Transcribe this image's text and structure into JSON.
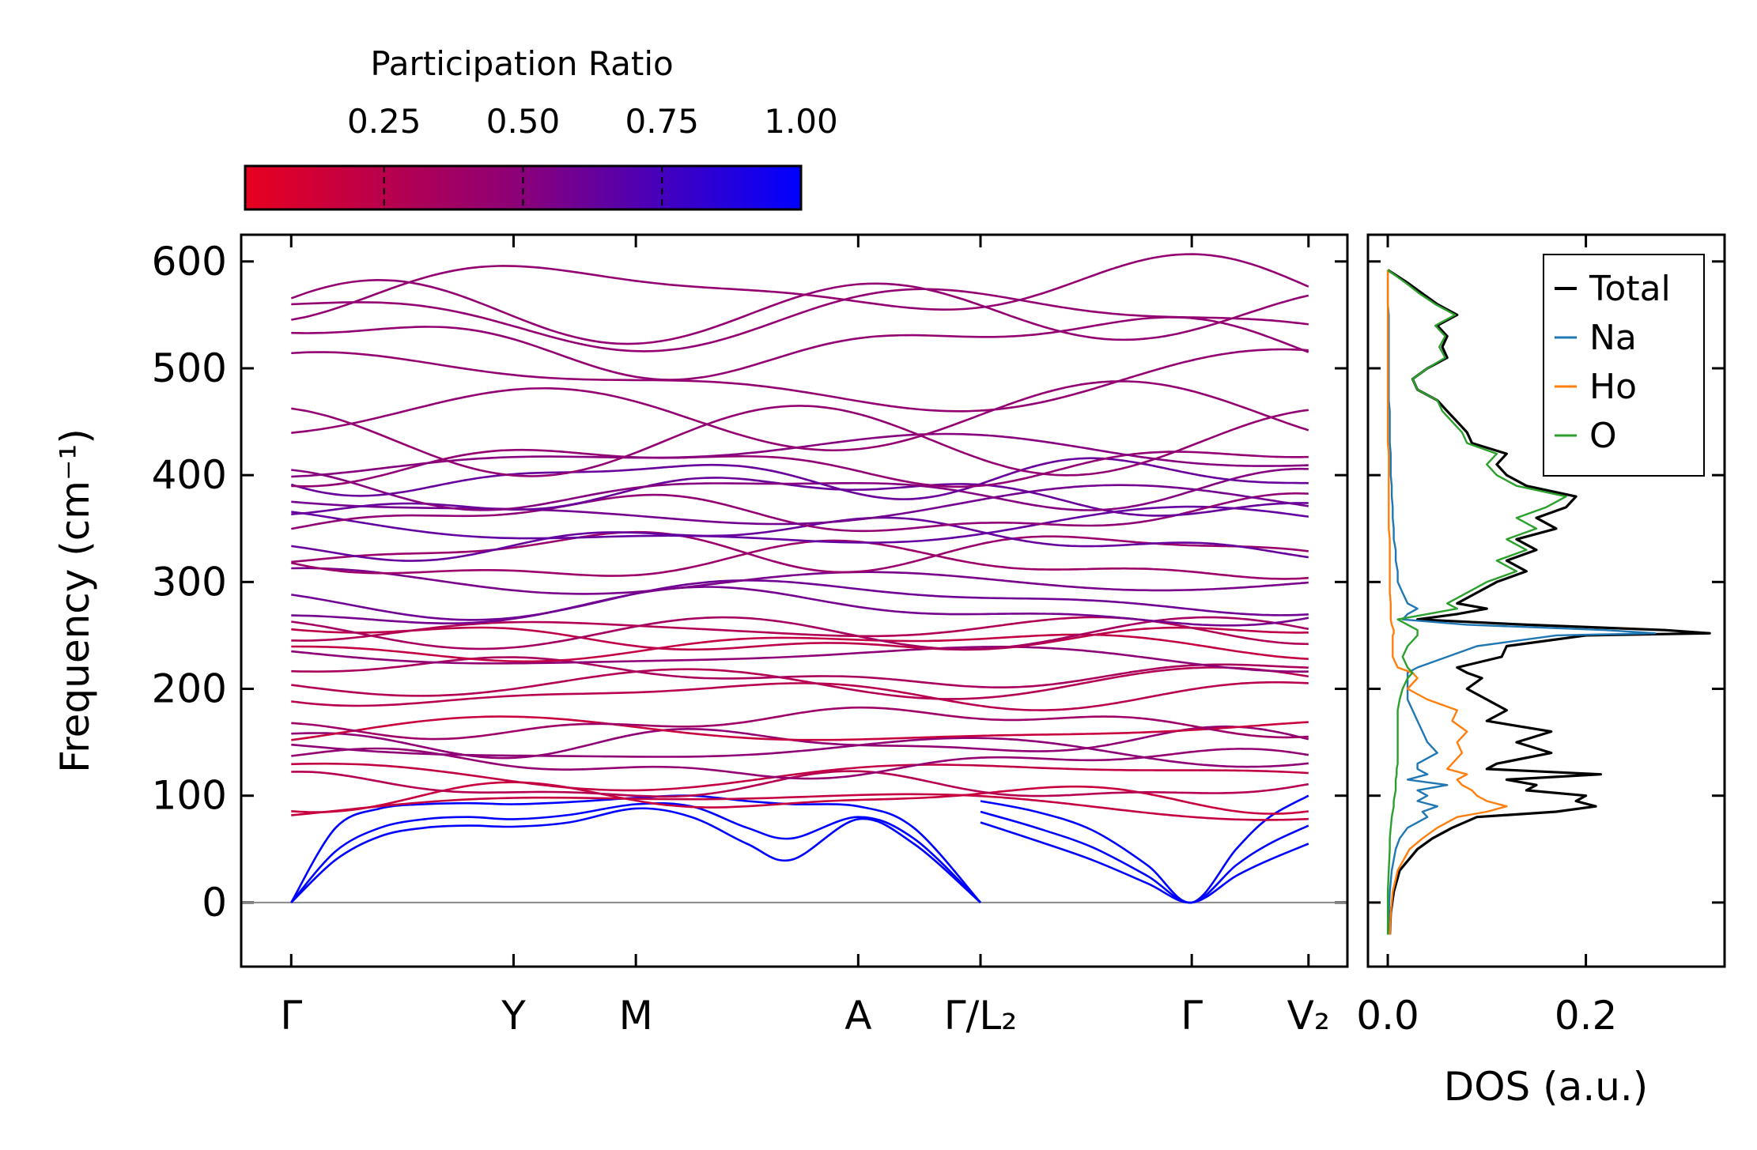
{
  "colorbar": {
    "title": "Participation Ratio",
    "range": [
      0.0,
      1.0
    ],
    "ticks": [
      0.25,
      0.5,
      0.75,
      1.0
    ],
    "tick_labels": [
      "0.25",
      "0.50",
      "0.75",
      "1.00"
    ],
    "color_low": "#e8001f",
    "color_mid": "#8a007a",
    "color_high": "#0000ff"
  },
  "chart_data": [
    {
      "type": "line",
      "name": "phonon-band-structure",
      "ylabel": "Frequency (cm⁻¹)",
      "ylim": [
        -60,
        625
      ],
      "yticks": [
        0,
        100,
        200,
        300,
        400,
        500,
        600
      ],
      "ytick_labels": [
        "0",
        "100",
        "200",
        "300",
        "400",
        "500",
        "600"
      ],
      "kpath_positions": [
        0,
        2.0,
        3.1,
        5.1,
        6.2,
        8.1,
        9.15
      ],
      "kpath_xlim": [
        -0.45,
        9.5
      ],
      "kpath_labels": [
        "Γ",
        "Y",
        "M",
        "A",
        "Γ/L₂",
        "Γ",
        "V₂"
      ],
      "kpath_break_at": 6.2,
      "zero_line": 0,
      "acoustic_branches": {
        "color_pr": 1.0,
        "seg1_gamma_y_m_a_gamma": [
          [
            0,
            0.4,
            0.8,
            1.2,
            1.6,
            2.0,
            2.5,
            3.1,
            3.6,
            4.1,
            4.5,
            5.1,
            5.6,
            6.2
          ],
          [
            [
              0,
              40,
              62,
              70,
              72,
              71,
              75,
              88,
              80,
              55,
              40,
              78,
              55,
              0
            ],
            [
              0,
              48,
              70,
              78,
              80,
              78,
              82,
              92,
              90,
              70,
              60,
              80,
              60,
              0
            ],
            [
              0,
              70,
              88,
              92,
              93,
              92,
              94,
              98,
              100,
              95,
              92,
              90,
              70,
              0
            ]
          ]
        ],
        "seg2_L2_gamma_V2": [
          [
            6.2,
            6.7,
            7.2,
            7.7,
            8.1,
            8.5,
            8.8,
            9.15
          ],
          [
            [
              75,
              58,
              40,
              18,
              0,
              25,
              40,
              55
            ],
            [
              85,
              70,
              52,
              25,
              0,
              35,
              55,
              72
            ],
            [
              95,
              85,
              68,
              35,
              0,
              50,
              80,
              100
            ]
          ]
        ]
      },
      "optical_band_levels_cm1": [
        92,
        98,
        108,
        120,
        130,
        142,
        150,
        160,
        168,
        195,
        205,
        215,
        230,
        240,
        248,
        252,
        256,
        275,
        285,
        300,
        318,
        330,
        340,
        350,
        362,
        370,
        380,
        385,
        398,
        410,
        418,
        432,
        455,
        488,
        522,
        548,
        552,
        575
      ]
    },
    {
      "type": "line",
      "name": "phonon-dos",
      "xlabel": "DOS (a.u.)",
      "xlim": [
        -0.02,
        0.34
      ],
      "xticks": [
        0.0,
        0.2
      ],
      "xtick_labels": [
        "0.0",
        "0.2"
      ],
      "ylim": [
        -60,
        625
      ],
      "legend_position": "top-right",
      "y": [
        -30,
        -10,
        10,
        30,
        50,
        60,
        70,
        80,
        85,
        90,
        95,
        100,
        105,
        110,
        115,
        120,
        125,
        130,
        140,
        150,
        160,
        170,
        180,
        190,
        200,
        210,
        215,
        220,
        230,
        240,
        250,
        252,
        255,
        260,
        265,
        270,
        275,
        280,
        290,
        300,
        310,
        320,
        330,
        340,
        350,
        360,
        370,
        380,
        390,
        400,
        410,
        420,
        430,
        440,
        450,
        460,
        470,
        480,
        490,
        500,
        510,
        520,
        530,
        540,
        550,
        560,
        570,
        580,
        592
      ],
      "series": [
        {
          "name": "Total",
          "color": "#000000",
          "values": [
            0.002,
            0.003,
            0.006,
            0.012,
            0.03,
            0.045,
            0.065,
            0.09,
            0.17,
            0.21,
            0.19,
            0.2,
            0.14,
            0.15,
            0.12,
            0.215,
            0.1,
            0.11,
            0.165,
            0.13,
            0.165,
            0.1,
            0.12,
            0.1,
            0.08,
            0.095,
            0.08,
            0.07,
            0.115,
            0.12,
            0.2,
            0.325,
            0.28,
            0.14,
            0.03,
            0.07,
            0.1,
            0.07,
            0.09,
            0.11,
            0.14,
            0.12,
            0.15,
            0.13,
            0.17,
            0.15,
            0.18,
            0.19,
            0.14,
            0.12,
            0.11,
            0.12,
            0.085,
            0.08,
            0.07,
            0.06,
            0.05,
            0.03,
            0.025,
            0.04,
            0.06,
            0.055,
            0.06,
            0.05,
            0.07,
            0.05,
            0.035,
            0.02,
            0.0
          ]
        },
        {
          "name": "Na",
          "color": "#1f77b4",
          "values": [
            0.0,
            0.001,
            0.002,
            0.004,
            0.008,
            0.012,
            0.02,
            0.04,
            0.035,
            0.05,
            0.03,
            0.04,
            0.03,
            0.06,
            0.02,
            0.04,
            0.03,
            0.03,
            0.05,
            0.04,
            0.035,
            0.03,
            0.025,
            0.02,
            0.02,
            0.02,
            0.02,
            0.03,
            0.06,
            0.09,
            0.17,
            0.27,
            0.22,
            0.08,
            0.015,
            0.02,
            0.03,
            0.02,
            0.015,
            0.01,
            0.01,
            0.008,
            0.008,
            0.006,
            0.006,
            0.005,
            0.005,
            0.004,
            0.004,
            0.003,
            0.003,
            0.003,
            0.002,
            0.002,
            0.002,
            0.002,
            0.001,
            0.001,
            0.001,
            0.001,
            0.001,
            0.001,
            0.001,
            0.001,
            0.001,
            0.0,
            0.0,
            0.0,
            0.0
          ]
        },
        {
          "name": "Ho",
          "color": "#ff7f0e",
          "values": [
            0.002,
            0.003,
            0.005,
            0.01,
            0.022,
            0.035,
            0.05,
            0.07,
            0.1,
            0.12,
            0.1,
            0.09,
            0.085,
            0.075,
            0.07,
            0.08,
            0.06,
            0.065,
            0.075,
            0.07,
            0.08,
            0.065,
            0.07,
            0.04,
            0.02,
            0.03,
            0.025,
            0.01,
            0.005,
            0.005,
            0.005,
            0.006,
            0.006,
            0.004,
            0.003,
            0.003,
            0.003,
            0.003,
            0.002,
            0.002,
            0.002,
            0.002,
            0.002,
            0.002,
            0.001,
            0.001,
            0.001,
            0.001,
            0.001,
            0.001,
            0.001,
            0.001,
            0.0,
            0.0,
            0.0,
            0.0,
            0.0,
            0.0,
            0.0,
            0.0,
            0.0,
            0.0,
            0.0,
            0.0,
            0.0,
            0.0,
            0.0,
            0.0,
            0.0
          ]
        },
        {
          "name": "O",
          "color": "#2ca02c",
          "values": [
            0.0,
            0.0,
            0.0,
            0.001,
            0.002,
            0.002,
            0.003,
            0.004,
            0.005,
            0.006,
            0.006,
            0.007,
            0.008,
            0.008,
            0.008,
            0.009,
            0.009,
            0.01,
            0.01,
            0.01,
            0.01,
            0.01,
            0.01,
            0.012,
            0.015,
            0.02,
            0.025,
            0.02,
            0.015,
            0.02,
            0.03,
            0.03,
            0.03,
            0.02,
            0.01,
            0.04,
            0.07,
            0.06,
            0.08,
            0.1,
            0.13,
            0.11,
            0.14,
            0.12,
            0.15,
            0.13,
            0.16,
            0.18,
            0.13,
            0.11,
            0.1,
            0.11,
            0.08,
            0.075,
            0.065,
            0.055,
            0.05,
            0.03,
            0.025,
            0.04,
            0.058,
            0.052,
            0.058,
            0.048,
            0.068,
            0.048,
            0.032,
            0.018,
            0.0
          ]
        }
      ]
    }
  ]
}
